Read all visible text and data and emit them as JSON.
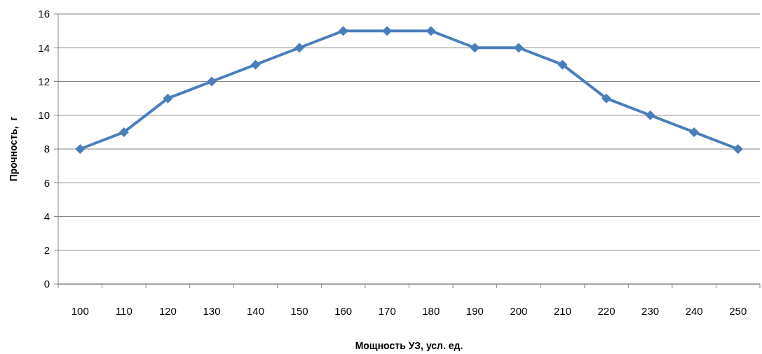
{
  "chart_data": {
    "type": "line",
    "xlabel": "Мощность УЗ, усл. ед.",
    "ylabel": "Прочность,  г",
    "categories": [
      "100",
      "110",
      "120",
      "130",
      "140",
      "150",
      "160",
      "170",
      "180",
      "190",
      "200",
      "210",
      "220",
      "230",
      "240",
      "250"
    ],
    "series": [
      {
        "color": "#4a7ebb",
        "values": [
          8,
          9,
          11,
          12,
          13,
          14,
          15,
          15,
          15,
          14,
          14,
          13,
          11,
          10,
          9,
          8
        ]
      }
    ],
    "ylim": [
      0,
      16
    ],
    "yticks": [
      0,
      2,
      4,
      6,
      8,
      10,
      12,
      14,
      16
    ],
    "grid": "y",
    "marker": "diamond",
    "line_style": "solid"
  }
}
